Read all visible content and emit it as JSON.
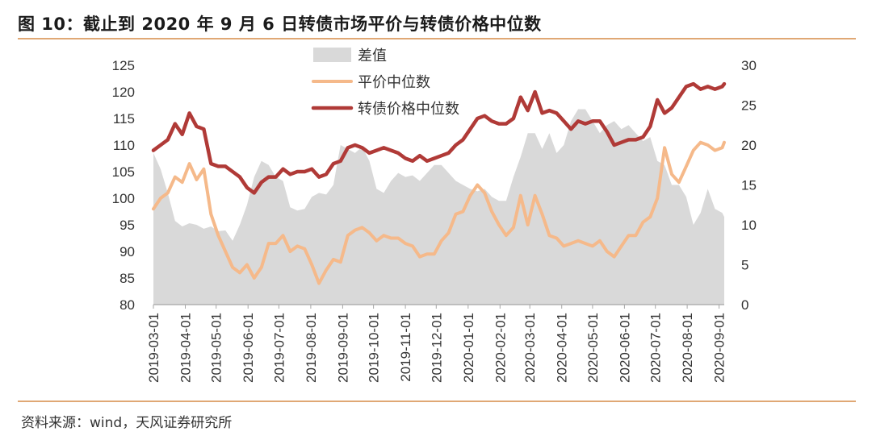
{
  "figure": {
    "title": "图 10：截止到 2020 年 9 月 6 日转债市场平价与转债价格中位数",
    "source": "资料来源：wind，天风证券研究所"
  },
  "colors": {
    "accent_rule": "#e0a875",
    "diff_area": "#d9d9d9",
    "parity_line": "#f5b98a",
    "price_line": "#b03a37"
  },
  "chart_data": {
    "type": "line",
    "x_ticks": [
      "2019-03-01",
      "2019-04-01",
      "2019-05-01",
      "2019-06-01",
      "2019-07-01",
      "2019-08-01",
      "2019-09-01",
      "2019-10-01",
      "2019-11-01",
      "2019-12-01",
      "2020-01-01",
      "2020-02-01",
      "2020-03-01",
      "2020-04-01",
      "2020-05-01",
      "2020-06-01",
      "2020-07-01",
      "2020-08-01",
      "2020-09-01"
    ],
    "x_range": [
      "2019-03-01",
      "2020-09-06"
    ],
    "y_left": {
      "range": [
        80,
        125
      ],
      "ticks": [
        "125",
        "120",
        "115",
        "110",
        "105",
        "100",
        "95",
        "90",
        "85",
        "80"
      ]
    },
    "y_right": {
      "range": [
        0,
        30
      ],
      "ticks": [
        "30",
        "25",
        "20",
        "15",
        "10",
        "5",
        "0"
      ]
    },
    "legend": {
      "placement": "top-center",
      "entries": [
        "差值",
        "平价中位数",
        "转债价格中位数"
      ]
    },
    "grid": false,
    "series": [
      {
        "name": "差值",
        "type": "area",
        "axis": "right",
        "points": [
          [
            "2019-03-01",
            19
          ],
          [
            "2019-03-08",
            17
          ],
          [
            "2019-03-15",
            14
          ],
          [
            "2019-03-22",
            10.5
          ],
          [
            "2019-03-29",
            9.8
          ],
          [
            "2019-04-05",
            10.2
          ],
          [
            "2019-04-12",
            10
          ],
          [
            "2019-04-19",
            9.5
          ],
          [
            "2019-04-26",
            9.8
          ],
          [
            "2019-05-03",
            9.2
          ],
          [
            "2019-05-10",
            9.3
          ],
          [
            "2019-05-17",
            8
          ],
          [
            "2019-05-24",
            10
          ],
          [
            "2019-05-31",
            12.5
          ],
          [
            "2019-06-07",
            16
          ],
          [
            "2019-06-14",
            18
          ],
          [
            "2019-06-21",
            17.5
          ],
          [
            "2019-06-28",
            16
          ],
          [
            "2019-07-05",
            15.5
          ],
          [
            "2019-07-12",
            12.2
          ],
          [
            "2019-07-19",
            11.8
          ],
          [
            "2019-07-26",
            12
          ],
          [
            "2019-08-02",
            13.5
          ],
          [
            "2019-08-09",
            14
          ],
          [
            "2019-08-16",
            13.8
          ],
          [
            "2019-08-23",
            15
          ],
          [
            "2019-08-30",
            20
          ],
          [
            "2019-09-06",
            19.5
          ],
          [
            "2019-09-13",
            19
          ],
          [
            "2019-09-20",
            19.8
          ],
          [
            "2019-09-27",
            18
          ],
          [
            "2019-10-04",
            14.5
          ],
          [
            "2019-10-11",
            14
          ],
          [
            "2019-10-18",
            15.5
          ],
          [
            "2019-10-25",
            16.5
          ],
          [
            "2019-11-01",
            16
          ],
          [
            "2019-11-08",
            16.2
          ],
          [
            "2019-11-15",
            15.5
          ],
          [
            "2019-11-22",
            16.5
          ],
          [
            "2019-11-29",
            17.5
          ],
          [
            "2019-12-06",
            17.5
          ],
          [
            "2019-12-13",
            16.5
          ],
          [
            "2019-12-20",
            15.5
          ],
          [
            "2019-12-27",
            15
          ],
          [
            "2020-01-03",
            14.5
          ],
          [
            "2020-01-10",
            14.2
          ],
          [
            "2020-01-17",
            14.5
          ],
          [
            "2020-01-24",
            13.5
          ],
          [
            "2020-01-31",
            13
          ],
          [
            "2020-02-07",
            13
          ],
          [
            "2020-02-14",
            16
          ],
          [
            "2020-02-21",
            18.5
          ],
          [
            "2020-02-28",
            21.5
          ],
          [
            "2020-03-06",
            21.5
          ],
          [
            "2020-03-13",
            19.5
          ],
          [
            "2020-03-20",
            21.5
          ],
          [
            "2020-03-27",
            19
          ],
          [
            "2020-04-03",
            20
          ],
          [
            "2020-04-10",
            23
          ],
          [
            "2020-04-17",
            24.5
          ],
          [
            "2020-04-24",
            24.5
          ],
          [
            "2020-05-01",
            23
          ],
          [
            "2020-05-08",
            21.5
          ],
          [
            "2020-05-15",
            22.5
          ],
          [
            "2020-05-22",
            23
          ],
          [
            "2020-05-29",
            22
          ],
          [
            "2020-06-05",
            22.5
          ],
          [
            "2020-06-12",
            21.5
          ],
          [
            "2020-06-19",
            20.5
          ],
          [
            "2020-06-26",
            21
          ],
          [
            "2020-07-03",
            18
          ],
          [
            "2020-07-10",
            17.5
          ],
          [
            "2020-07-17",
            15
          ],
          [
            "2020-07-24",
            15
          ],
          [
            "2020-07-31",
            13.5
          ],
          [
            "2020-08-07",
            10
          ],
          [
            "2020-08-14",
            11.5
          ],
          [
            "2020-08-21",
            14.5
          ],
          [
            "2020-08-28",
            12
          ],
          [
            "2020-09-04",
            11.5
          ],
          [
            "2020-09-06",
            11
          ]
        ]
      },
      {
        "name": "平价中位数",
        "type": "line",
        "axis": "left",
        "points": [
          [
            "2019-03-01",
            98
          ],
          [
            "2019-03-08",
            100
          ],
          [
            "2019-03-15",
            101
          ],
          [
            "2019-03-22",
            104
          ],
          [
            "2019-03-29",
            103
          ],
          [
            "2019-04-05",
            106.5
          ],
          [
            "2019-04-12",
            103.5
          ],
          [
            "2019-04-19",
            105.5
          ],
          [
            "2019-04-26",
            97
          ],
          [
            "2019-05-03",
            93
          ],
          [
            "2019-05-10",
            90
          ],
          [
            "2019-05-17",
            87
          ],
          [
            "2019-05-24",
            86
          ],
          [
            "2019-05-31",
            87.5
          ],
          [
            "2019-06-07",
            85
          ],
          [
            "2019-06-14",
            87
          ],
          [
            "2019-06-21",
            91.5
          ],
          [
            "2019-06-28",
            91.5
          ],
          [
            "2019-07-05",
            93
          ],
          [
            "2019-07-12",
            90
          ],
          [
            "2019-07-19",
            91
          ],
          [
            "2019-07-26",
            90.5
          ],
          [
            "2019-08-02",
            87.5
          ],
          [
            "2019-08-09",
            84
          ],
          [
            "2019-08-16",
            86.5
          ],
          [
            "2019-08-23",
            88.5
          ],
          [
            "2019-08-30",
            88
          ],
          [
            "2019-09-06",
            93
          ],
          [
            "2019-09-13",
            94
          ],
          [
            "2019-09-20",
            94.5
          ],
          [
            "2019-09-27",
            93.5
          ],
          [
            "2019-10-04",
            92
          ],
          [
            "2019-10-11",
            93
          ],
          [
            "2019-10-18",
            92.5
          ],
          [
            "2019-10-25",
            92.5
          ],
          [
            "2019-11-01",
            91.5
          ],
          [
            "2019-11-08",
            91
          ],
          [
            "2019-11-15",
            89
          ],
          [
            "2019-11-22",
            89.5
          ],
          [
            "2019-11-29",
            89.5
          ],
          [
            "2019-12-06",
            92
          ],
          [
            "2019-12-13",
            93.5
          ],
          [
            "2019-12-20",
            97
          ],
          [
            "2019-12-27",
            97.5
          ],
          [
            "2020-01-03",
            100.5
          ],
          [
            "2020-01-10",
            102.5
          ],
          [
            "2020-01-17",
            101
          ],
          [
            "2020-01-24",
            97.5
          ],
          [
            "2020-01-31",
            95
          ],
          [
            "2020-02-07",
            93
          ],
          [
            "2020-02-14",
            94.5
          ],
          [
            "2020-02-21",
            100.5
          ],
          [
            "2020-02-28",
            95
          ],
          [
            "2020-03-06",
            100.5
          ],
          [
            "2020-03-13",
            97
          ],
          [
            "2020-03-20",
            93
          ],
          [
            "2020-03-27",
            92.5
          ],
          [
            "2020-04-03",
            91
          ],
          [
            "2020-04-10",
            91.5
          ],
          [
            "2020-04-17",
            92
          ],
          [
            "2020-04-24",
            91.5
          ],
          [
            "2020-05-01",
            91
          ],
          [
            "2020-05-08",
            92
          ],
          [
            "2020-05-15",
            90
          ],
          [
            "2020-05-22",
            89
          ],
          [
            "2020-05-29",
            91
          ],
          [
            "2020-06-05",
            93
          ],
          [
            "2020-06-12",
            93
          ],
          [
            "2020-06-19",
            95.5
          ],
          [
            "2020-06-26",
            96.5
          ],
          [
            "2020-07-03",
            100
          ],
          [
            "2020-07-10",
            109.5
          ],
          [
            "2020-07-17",
            104.5
          ],
          [
            "2020-07-24",
            103
          ],
          [
            "2020-07-31",
            106
          ],
          [
            "2020-08-07",
            109
          ],
          [
            "2020-08-14",
            110.5
          ],
          [
            "2020-08-21",
            110
          ],
          [
            "2020-08-28",
            109
          ],
          [
            "2020-09-04",
            109.5
          ],
          [
            "2020-09-06",
            110.5
          ]
        ]
      },
      {
        "name": "转债价格中位数",
        "type": "line",
        "axis": "left",
        "points": [
          [
            "2019-03-01",
            109
          ],
          [
            "2019-03-08",
            110
          ],
          [
            "2019-03-15",
            111
          ],
          [
            "2019-03-22",
            114
          ],
          [
            "2019-03-29",
            112
          ],
          [
            "2019-04-05",
            116
          ],
          [
            "2019-04-12",
            113.5
          ],
          [
            "2019-04-19",
            113
          ],
          [
            "2019-04-26",
            106.5
          ],
          [
            "2019-05-03",
            106
          ],
          [
            "2019-05-10",
            106
          ],
          [
            "2019-05-17",
            105
          ],
          [
            "2019-05-24",
            104
          ],
          [
            "2019-05-31",
            102
          ],
          [
            "2019-06-07",
            101
          ],
          [
            "2019-06-14",
            103
          ],
          [
            "2019-06-21",
            104
          ],
          [
            "2019-06-28",
            104
          ],
          [
            "2019-07-05",
            105.5
          ],
          [
            "2019-07-12",
            104.5
          ],
          [
            "2019-07-19",
            105
          ],
          [
            "2019-07-26",
            105
          ],
          [
            "2019-08-02",
            105.5
          ],
          [
            "2019-08-09",
            104
          ],
          [
            "2019-08-16",
            104.5
          ],
          [
            "2019-08-23",
            106.5
          ],
          [
            "2019-08-30",
            107
          ],
          [
            "2019-09-06",
            109.5
          ],
          [
            "2019-09-13",
            110
          ],
          [
            "2019-09-20",
            109.5
          ],
          [
            "2019-09-27",
            108.5
          ],
          [
            "2019-10-04",
            109
          ],
          [
            "2019-10-11",
            109.5
          ],
          [
            "2019-10-18",
            109
          ],
          [
            "2019-10-25",
            108.5
          ],
          [
            "2019-11-01",
            107.5
          ],
          [
            "2019-11-08",
            107
          ],
          [
            "2019-11-15",
            108
          ],
          [
            "2019-11-22",
            107
          ],
          [
            "2019-11-29",
            107.5
          ],
          [
            "2019-12-06",
            108
          ],
          [
            "2019-12-13",
            108.5
          ],
          [
            "2019-12-20",
            110
          ],
          [
            "2019-12-27",
            111
          ],
          [
            "2020-01-03",
            113
          ],
          [
            "2020-01-10",
            115
          ],
          [
            "2020-01-17",
            115.5
          ],
          [
            "2020-01-24",
            114.5
          ],
          [
            "2020-01-31",
            114
          ],
          [
            "2020-02-07",
            114
          ],
          [
            "2020-02-14",
            115
          ],
          [
            "2020-02-21",
            119
          ],
          [
            "2020-02-28",
            116.5
          ],
          [
            "2020-03-06",
            120
          ],
          [
            "2020-03-13",
            116
          ],
          [
            "2020-03-20",
            116.5
          ],
          [
            "2020-03-27",
            116
          ],
          [
            "2020-04-03",
            114.5
          ],
          [
            "2020-04-10",
            113
          ],
          [
            "2020-04-17",
            114.5
          ],
          [
            "2020-04-24",
            114
          ],
          [
            "2020-05-01",
            114.5
          ],
          [
            "2020-05-08",
            114.5
          ],
          [
            "2020-05-15",
            112.5
          ],
          [
            "2020-05-22",
            110
          ],
          [
            "2020-05-29",
            110.5
          ],
          [
            "2020-06-05",
            111
          ],
          [
            "2020-06-12",
            111
          ],
          [
            "2020-06-19",
            111.5
          ],
          [
            "2020-06-26",
            113.5
          ],
          [
            "2020-07-03",
            118.5
          ],
          [
            "2020-07-10",
            116
          ],
          [
            "2020-07-17",
            117
          ],
          [
            "2020-07-24",
            119
          ],
          [
            "2020-07-31",
            121
          ],
          [
            "2020-08-07",
            121.5
          ],
          [
            "2020-08-14",
            120.5
          ],
          [
            "2020-08-21",
            121
          ],
          [
            "2020-08-28",
            120.5
          ],
          [
            "2020-09-04",
            121
          ],
          [
            "2020-09-06",
            121.5
          ]
        ]
      }
    ]
  }
}
